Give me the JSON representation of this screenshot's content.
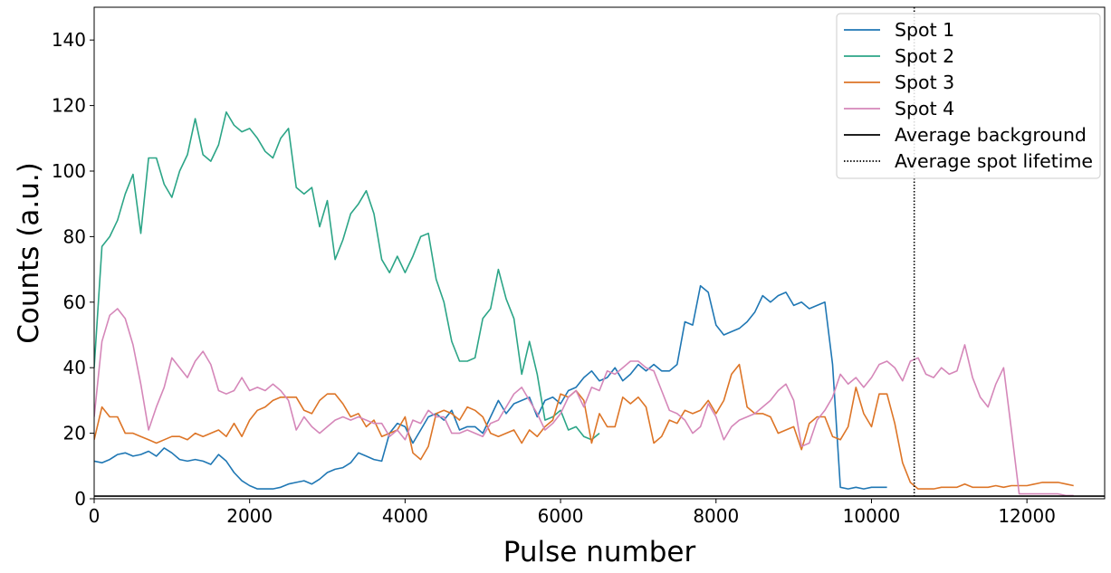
{
  "chart_data": {
    "type": "line",
    "xlabel": "Pulse number",
    "ylabel": "Counts (a.u.)",
    "xlim": [
      0,
      13000
    ],
    "ylim": [
      0,
      150
    ],
    "xticks": [
      0,
      2000,
      4000,
      6000,
      8000,
      10000,
      12000
    ],
    "yticks": [
      0,
      20,
      40,
      60,
      80,
      100,
      120,
      140
    ],
    "xtick_labels": [
      "0",
      "2000",
      "4000",
      "6000",
      "8000",
      "10000",
      "12000"
    ],
    "ytick_labels": [
      "0",
      "20",
      "40",
      "60",
      "80",
      "100",
      "120",
      "140"
    ],
    "grid": false,
    "legend_position": "top-right",
    "series": [
      {
        "name": "Spot 1",
        "color": "#1f77b4",
        "x": [
          0,
          100,
          200,
          300,
          400,
          500,
          600,
          700,
          800,
          900,
          1000,
          1100,
          1200,
          1300,
          1400,
          1500,
          1600,
          1700,
          1800,
          1900,
          2000,
          2100,
          2200,
          2300,
          2400,
          2500,
          2600,
          2700,
          2800,
          2900,
          3000,
          3100,
          3200,
          3300,
          3400,
          3500,
          3600,
          3700,
          3800,
          3900,
          4000,
          4100,
          4200,
          4300,
          4400,
          4500,
          4600,
          4700,
          4800,
          4900,
          5000,
          5100,
          5200,
          5300,
          5400,
          5500,
          5600,
          5700,
          5800,
          5900,
          6000,
          6100,
          6200,
          6300,
          6400,
          6500,
          6600,
          6700,
          6800,
          6900,
          7000,
          7100,
          7200,
          7300,
          7400,
          7500,
          7600,
          7700,
          7800,
          7900,
          8000,
          8100,
          8200,
          8300,
          8400,
          8500,
          8600,
          8700,
          8800,
          8900,
          9000,
          9100,
          9200,
          9300,
          9400,
          9500,
          9600,
          9700,
          9800,
          9900,
          10000,
          10100,
          10200
        ],
        "y": [
          11.5,
          11,
          12,
          13.5,
          14,
          13,
          13.5,
          14.5,
          13,
          15.5,
          14,
          12,
          11.5,
          12,
          11.5,
          10.5,
          13.5,
          11.5,
          8,
          5.5,
          4,
          3,
          3,
          3,
          3.5,
          4.5,
          5,
          5.5,
          4.5,
          6,
          8,
          9,
          9.5,
          11,
          14,
          13,
          12,
          11.5,
          20,
          23,
          22,
          17,
          21,
          25,
          26,
          24,
          27,
          21,
          22,
          22,
          20,
          25,
          30,
          26,
          29,
          30,
          31,
          25,
          30,
          31,
          29,
          33,
          34,
          37,
          39,
          36,
          37,
          40,
          36,
          38,
          41,
          39,
          41,
          39,
          39,
          41,
          54,
          53,
          65,
          63,
          53,
          50,
          51,
          52,
          54,
          57,
          62,
          60,
          62,
          63,
          59,
          60,
          58,
          59,
          60,
          41,
          3.5,
          3,
          3.5,
          3,
          3.5,
          3.5,
          3.5
        ]
      },
      {
        "name": "Spot 2",
        "color": "#2ca587",
        "x": [
          0,
          100,
          200,
          300,
          400,
          500,
          600,
          700,
          800,
          900,
          1000,
          1100,
          1200,
          1300,
          1400,
          1500,
          1600,
          1700,
          1800,
          1900,
          2000,
          2100,
          2200,
          2300,
          2400,
          2500,
          2600,
          2700,
          2800,
          2900,
          3000,
          3100,
          3200,
          3300,
          3400,
          3500,
          3600,
          3700,
          3800,
          3900,
          4000,
          4100,
          4200,
          4300,
          4400,
          4500,
          4600,
          4700,
          4800,
          4900,
          5000,
          5100,
          5200,
          5300,
          5400,
          5500,
          5600,
          5700,
          5800,
          5900,
          6000,
          6100,
          6200,
          6300,
          6400,
          6500
        ],
        "y": [
          40,
          77,
          80,
          85,
          93,
          99,
          81,
          104,
          104,
          96,
          92,
          100,
          105,
          116,
          105,
          103,
          108,
          118,
          114,
          112,
          113,
          110,
          106,
          104,
          110,
          113,
          95,
          93,
          95,
          83,
          91,
          73,
          79,
          87,
          90,
          94,
          87,
          73,
          69,
          74,
          69,
          74,
          80,
          81,
          67,
          60,
          48,
          42,
          42,
          43,
          55,
          58,
          70,
          61,
          55,
          38,
          48,
          38,
          24,
          25,
          27,
          21,
          22,
          19,
          18,
          20
        ]
      },
      {
        "name": "Spot 3",
        "color": "#dd7527",
        "x": [
          0,
          100,
          200,
          300,
          400,
          500,
          600,
          700,
          800,
          900,
          1000,
          1100,
          1200,
          1300,
          1400,
          1500,
          1600,
          1700,
          1800,
          1900,
          2000,
          2100,
          2200,
          2300,
          2400,
          2500,
          2600,
          2700,
          2800,
          2900,
          3000,
          3100,
          3200,
          3300,
          3400,
          3500,
          3600,
          3700,
          3800,
          3900,
          4000,
          4100,
          4200,
          4300,
          4400,
          4500,
          4600,
          4700,
          4800,
          4900,
          5000,
          5100,
          5200,
          5300,
          5400,
          5500,
          5600,
          5700,
          5800,
          5900,
          6000,
          6100,
          6200,
          6300,
          6400,
          6500,
          6600,
          6700,
          6800,
          6900,
          7000,
          7100,
          7200,
          7300,
          7400,
          7500,
          7600,
          7700,
          7800,
          7900,
          8000,
          8100,
          8200,
          8300,
          8400,
          8500,
          8600,
          8700,
          8800,
          8900,
          9000,
          9100,
          9200,
          9300,
          9400,
          9500,
          9600,
          9700,
          9800,
          9900,
          10000,
          10100,
          10200,
          10300,
          10400,
          10500,
          10600,
          10700,
          10800,
          10900,
          11000,
          11100,
          11200,
          11300,
          11400,
          11500,
          11600,
          11700,
          11800,
          11900,
          12000,
          12100,
          12200,
          12300,
          12400,
          12500,
          12600
        ],
        "y": [
          18,
          28,
          25,
          25,
          20,
          20,
          19,
          18,
          17,
          18,
          19,
          19,
          18,
          20,
          19,
          20,
          21,
          19,
          23,
          19,
          24,
          27,
          28,
          30,
          31,
          31,
          31,
          27,
          26,
          30,
          32,
          32,
          29,
          25,
          26,
          22,
          24,
          19,
          20,
          21,
          25,
          14,
          12,
          16,
          26,
          27,
          26,
          24,
          28,
          27,
          25,
          20,
          19,
          20,
          21,
          17,
          21,
          19,
          22,
          24,
          32,
          31,
          33,
          30,
          17,
          26,
          22,
          22,
          31,
          29,
          31,
          28,
          17,
          19,
          24,
          23,
          27,
          26,
          27,
          30,
          26,
          30,
          38,
          41,
          28,
          26,
          26,
          25,
          20,
          21,
          22,
          15,
          23,
          25,
          25,
          19,
          18,
          22,
          34,
          26,
          22,
          32,
          32,
          23,
          11,
          5,
          3,
          3,
          3,
          3.5,
          3.5,
          3.5,
          4.5,
          3.5,
          3.5,
          3.5,
          4,
          3.5,
          4,
          4,
          4,
          4.5,
          5,
          5,
          5,
          4.5,
          4
        ]
      },
      {
        "name": "Spot 4",
        "color": "#d587b9",
        "x": [
          0,
          100,
          200,
          300,
          400,
          500,
          600,
          700,
          800,
          900,
          1000,
          1100,
          1200,
          1300,
          1400,
          1500,
          1600,
          1700,
          1800,
          1900,
          2000,
          2100,
          2200,
          2300,
          2400,
          2500,
          2600,
          2700,
          2800,
          2900,
          3000,
          3100,
          3200,
          3300,
          3400,
          3500,
          3600,
          3700,
          3800,
          3900,
          4000,
          4100,
          4200,
          4300,
          4400,
          4500,
          4600,
          4700,
          4800,
          4900,
          5000,
          5100,
          5200,
          5300,
          5400,
          5500,
          5600,
          5700,
          5800,
          5900,
          6000,
          6100,
          6200,
          6300,
          6400,
          6500,
          6600,
          6700,
          6800,
          6900,
          7000,
          7100,
          7200,
          7300,
          7400,
          7500,
          7600,
          7700,
          7800,
          7900,
          8000,
          8100,
          8200,
          8300,
          8400,
          8500,
          8600,
          8700,
          8800,
          8900,
          9000,
          9100,
          9200,
          9300,
          9400,
          9500,
          9600,
          9700,
          9800,
          9900,
          10000,
          10100,
          10200,
          10300,
          10400,
          10500,
          10600,
          10700,
          10800,
          10900,
          11000,
          11100,
          11200,
          11300,
          11400,
          11500,
          11600,
          11700,
          11800,
          11900,
          12000,
          12100,
          12200,
          12300,
          12400,
          12500,
          12600
        ],
        "y": [
          25,
          48,
          56,
          58,
          55,
          47,
          35,
          21,
          28,
          34,
          43,
          40,
          37,
          42,
          45,
          41,
          33,
          32,
          33,
          37,
          33,
          34,
          33,
          35,
          33,
          30,
          21,
          25,
          22,
          20,
          22,
          24,
          25,
          24,
          25,
          24,
          23,
          23,
          19,
          21,
          18,
          24,
          23,
          27,
          25,
          25,
          20,
          20,
          21,
          20,
          19,
          23,
          24,
          28,
          32,
          34,
          30,
          26,
          21,
          23,
          26,
          31,
          33,
          28,
          34,
          33,
          39,
          38,
          40,
          42,
          42,
          40,
          39,
          33,
          27,
          26,
          24,
          20,
          22,
          29,
          25,
          18,
          22,
          24,
          25,
          26,
          28,
          30,
          33,
          35,
          30,
          16,
          17,
          24,
          27,
          31,
          38,
          35,
          37,
          34,
          37,
          41,
          42,
          40,
          36,
          42,
          43,
          38,
          37,
          40,
          38,
          39,
          47,
          37,
          31,
          28,
          35,
          40,
          21,
          1.5,
          1.5,
          1.5,
          1.5,
          1.5,
          1.5,
          1,
          1
        ]
      }
    ],
    "reference_lines": [
      {
        "name": "Average background",
        "orientation": "horizontal",
        "value": 0.8,
        "color": "#000000",
        "style": "solid"
      },
      {
        "name": "Average spot lifetime",
        "orientation": "vertical",
        "value": 10550,
        "color": "#000000",
        "style": "dotted"
      }
    ]
  }
}
